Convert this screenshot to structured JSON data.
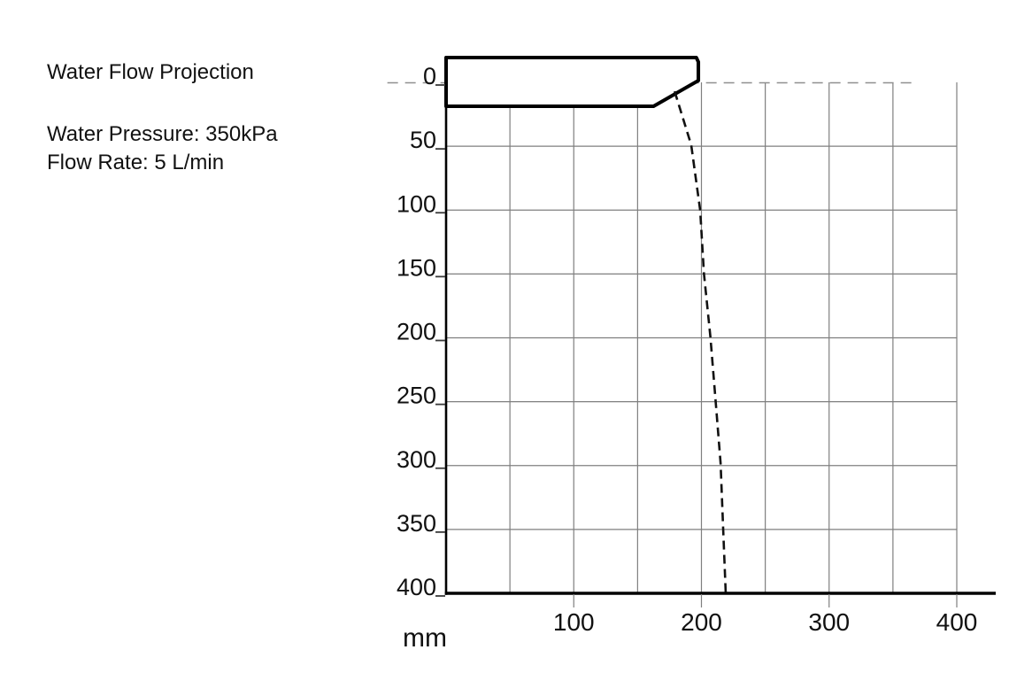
{
  "info": {
    "title": "Water Flow Projection",
    "specs": [
      "Water Pressure: 350kPa",
      "Flow Rate: 5 L/min"
    ]
  },
  "chart_data": {
    "type": "line",
    "title": "Water Flow Projection",
    "subtitle_lines": [
      "Water Pressure: 350kPa",
      "Flow Rate: 5 L/min"
    ],
    "xlabel": "mm",
    "ylabel": "",
    "unit": "mm",
    "xlim": [
      0,
      430
    ],
    "ylim": [
      0,
      400
    ],
    "y_axis_inverted_downward": true,
    "grid": true,
    "grid_step_mm": 50,
    "legend": "none",
    "x_tick_labels": [
      100,
      200,
      300,
      400
    ],
    "y_tick_labels": [
      0,
      50,
      100,
      150,
      200,
      250,
      300,
      350,
      400
    ],
    "series": [
      {
        "name": "water-flow-trajectory",
        "style": "dashed",
        "points_mm": [
          [
            179,
            7
          ],
          [
            192,
            49
          ],
          [
            199,
            100
          ],
          [
            202,
            150
          ],
          [
            207,
            199
          ],
          [
            211,
            248
          ],
          [
            215,
            298
          ],
          [
            217,
            349
          ],
          [
            219,
            399
          ]
        ]
      }
    ],
    "spout_outline_mm": [
      [
        0,
        -19.4
      ],
      [
        196,
        -19.4
      ],
      [
        197.6,
        -16
      ],
      [
        197.6,
        -1.4
      ],
      [
        162.5,
        18.7
      ],
      [
        0,
        18.7
      ]
    ],
    "zero_reference_line_mm": {
      "y": 0,
      "from_x": -46,
      "to_x": 366,
      "style": "dashed"
    },
    "colors": {
      "grid": "#7f7f7f",
      "axis": "#000000",
      "spout_stroke": "#000000",
      "trajectory": "#111111",
      "zero_line": "#8f8f8f",
      "text": "#111111",
      "background": "#ffffff"
    }
  }
}
